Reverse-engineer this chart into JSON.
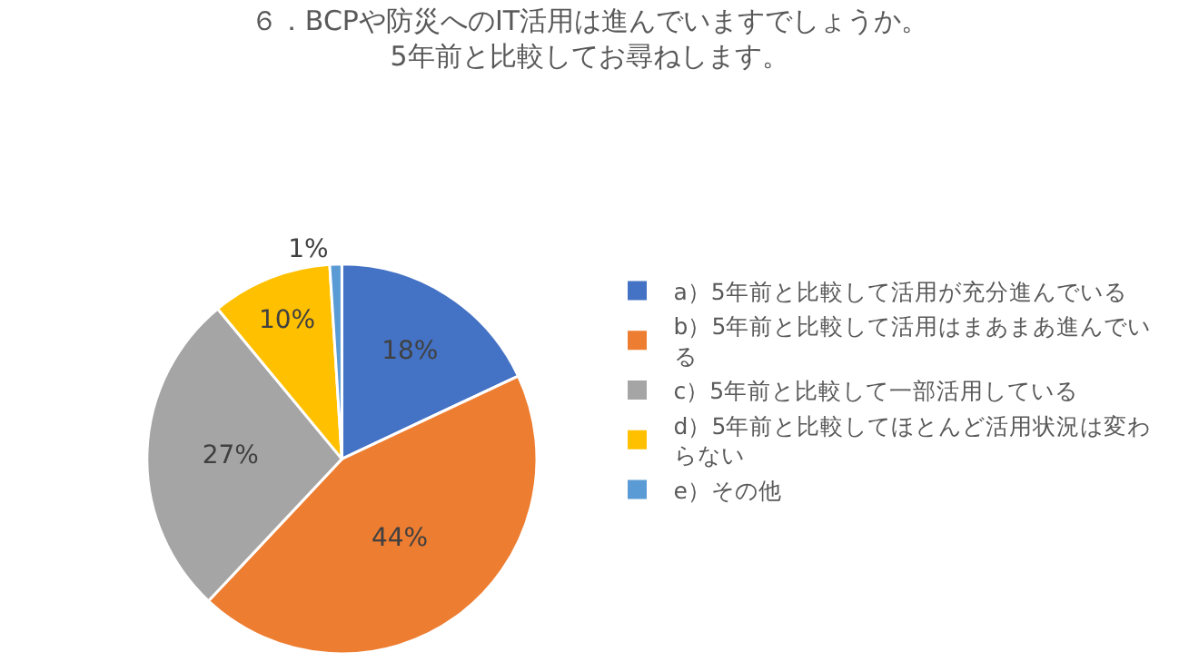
{
  "chart_data": {
    "type": "pie",
    "title": "６．BCPや防災へのIT活用は進んでいますでしょうか。\n5年前と比較してお尋ねします。",
    "categories": [
      "a）5年前と比較して活用が充分進んでいる",
      "b）5年前と比較して活用はまあまあ進んでいる",
      "c）5年前と比較して一部活用している",
      "d）5年前と比較してほとんど活用状況は変わらない",
      "e）その他"
    ],
    "values": [
      18,
      44,
      27,
      10,
      1
    ],
    "value_labels": [
      "18%",
      "44%",
      "27%",
      "10%",
      "1%"
    ],
    "colors": [
      "#4472c4",
      "#ed7d31",
      "#a5a5a5",
      "#ffc000",
      "#5b9bd5"
    ],
    "legend": "right"
  }
}
